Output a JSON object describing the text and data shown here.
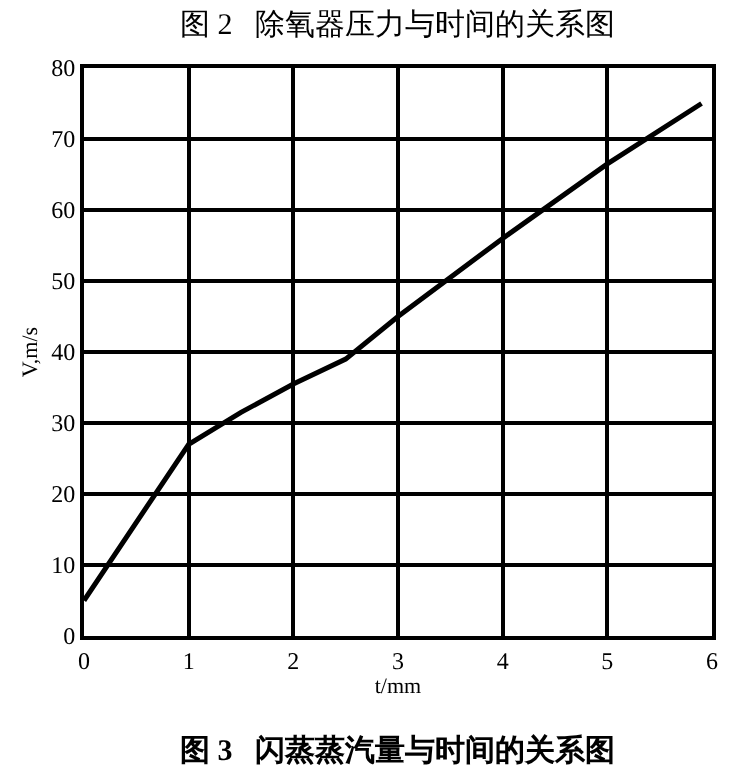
{
  "chart_data": {
    "type": "line",
    "title": "图 3   闪蒸蒸汽量与时间的关系图",
    "annotations": [
      "图 2   除氧器压力与时间的关系图"
    ],
    "xlabel": "t/mm",
    "ylabel": "V,m/s",
    "x": [
      0,
      1,
      1.5,
      2,
      2.5,
      3,
      4,
      5,
      5.9
    ],
    "series": [
      {
        "color": "#000000",
        "values": [
          5,
          27,
          31.5,
          35.5,
          39,
          45,
          56,
          66.5,
          75
        ]
      }
    ],
    "xlim": [
      0,
      6
    ],
    "xticks": [
      0,
      1,
      2,
      3,
      4,
      5,
      6
    ],
    "ylim": [
      0,
      80
    ],
    "yticks": [
      0,
      10,
      20,
      30,
      40,
      50,
      60,
      70,
      80
    ],
    "grid": true,
    "legend": false,
    "marker": "none",
    "line_style": "solid"
  }
}
